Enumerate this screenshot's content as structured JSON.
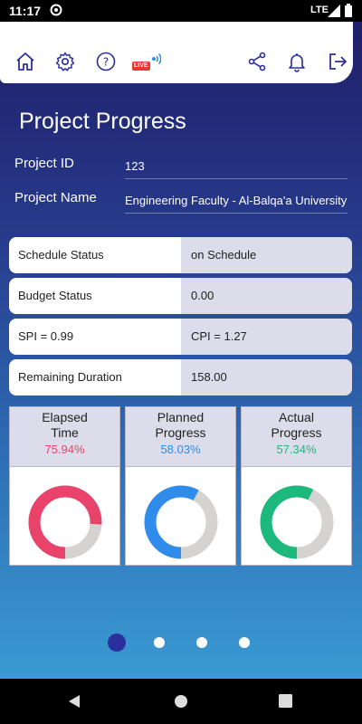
{
  "status_bar": {
    "time": "11:17",
    "network": "LTE"
  },
  "toolbar": {
    "icons": [
      "home-icon",
      "gear-icon",
      "help-icon",
      "live-icon",
      "share-icon",
      "bell-icon",
      "logout-icon"
    ],
    "live_label": "LIVE"
  },
  "page": {
    "title": "Project Progress"
  },
  "fields": {
    "project_id_label": "Project ID",
    "project_id_value": "123",
    "project_name_label": "Project Name",
    "project_name_value": "Engineering Faculty - Al-Balqa'a University"
  },
  "rows": [
    {
      "label": "Schedule Status",
      "value": "on Schedule"
    },
    {
      "label": "Budget Status",
      "value": "0.00"
    },
    {
      "label": "SPI = 0.99",
      "value": "CPI = 1.27"
    },
    {
      "label": "Remaining Duration",
      "value": "158.00"
    }
  ],
  "cards": [
    {
      "line1": "Elapsed",
      "line2": "Time",
      "percent_label": "75.94%",
      "percent": 75.94,
      "color": "#e8436a"
    },
    {
      "line1": "Planned",
      "line2": "Progress",
      "percent_label": "58.03%",
      "percent": 58.03,
      "color": "#2f8cea"
    },
    {
      "line1": "Actual",
      "line2": "Progress",
      "percent_label": "57.34%",
      "percent": 57.34,
      "color": "#1db97c"
    }
  ],
  "pager": {
    "count": 4,
    "active": 0
  },
  "colors": {
    "track": "#d5d2d2",
    "active_dot": "#2b2f9e"
  }
}
